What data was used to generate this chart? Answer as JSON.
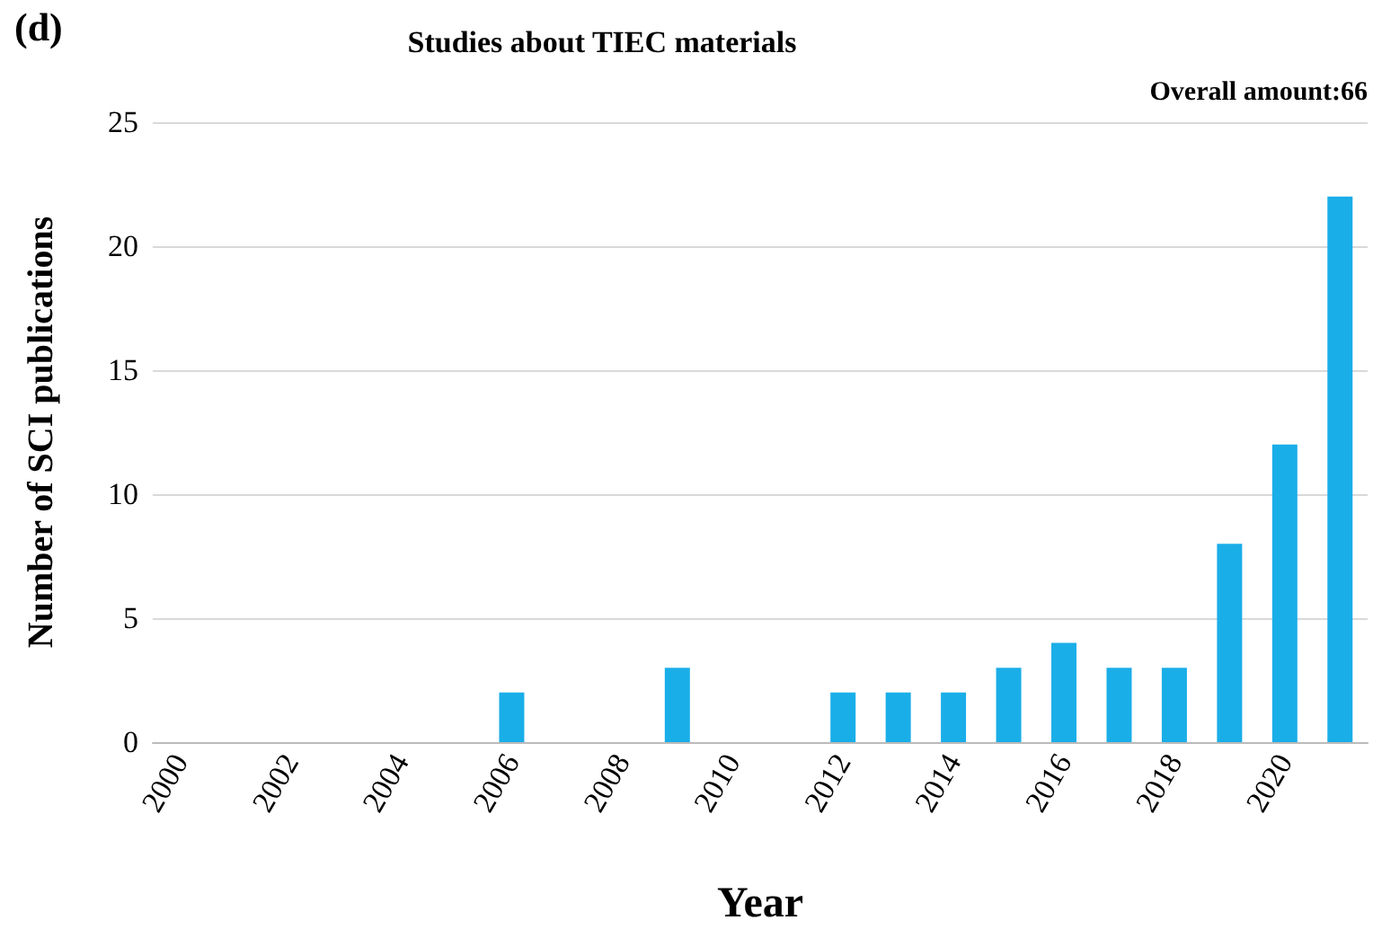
{
  "chart_data": {
    "type": "bar",
    "title": "Studies about TIEC materials",
    "xlabel": "Year",
    "ylabel": "Number of SCI publications",
    "annotations": [
      "(d)",
      "Overall amount:66"
    ],
    "categories": [
      "2000",
      null,
      "2002",
      null,
      "2004",
      null,
      "2006",
      null,
      "2008",
      null,
      "2010",
      null,
      "2012",
      null,
      "2014",
      null,
      "2016",
      null,
      "2018",
      null,
      "2020",
      null
    ],
    "values": [
      0,
      0,
      0,
      0,
      0,
      0,
      2,
      0,
      0,
      3,
      0,
      0,
      2,
      2,
      2,
      3,
      4,
      3,
      3,
      8,
      12,
      22
    ],
    "color": "#1aaee8",
    "ylim": [
      0,
      25
    ],
    "yticks": [
      0,
      5,
      10,
      15,
      20,
      25
    ],
    "grid": "y"
  }
}
